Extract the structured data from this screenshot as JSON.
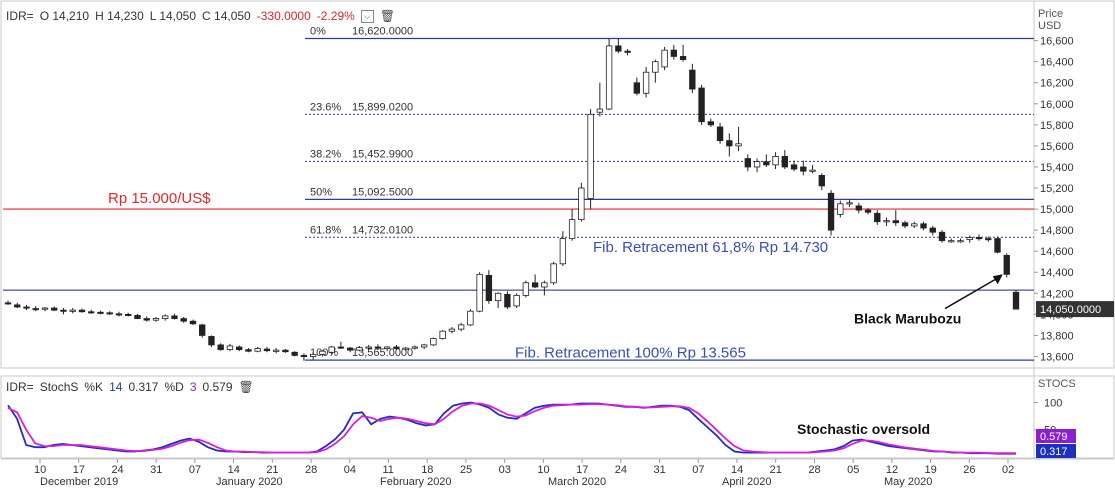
{
  "header": {
    "symbol": "IDR=",
    "open": "O 14,210",
    "high": "H 14,230",
    "low": "L 14,050",
    "close": "C 14,050",
    "change": "-330.0000",
    "change_pct": "-2.29%"
  },
  "stoch_header": {
    "symbol": "IDR=",
    "indicator": "StochS",
    "k_label": "%K",
    "k_period": "14",
    "k_value": "0.317",
    "d_label": "%D",
    "d_period": "3",
    "d_value": "0.579"
  },
  "colors": {
    "fib_line": "#2a3aa0",
    "red_line": "#e8252b",
    "k_line": "#1d2fc0",
    "d_line": "#d91ed9",
    "last_price_bg": "#333333",
    "annotation_blue": "#3a4fb0",
    "annotation_red": "#e8252b"
  },
  "chart_data": [
    {
      "type": "candlestick",
      "y_axis_title": [
        "Price",
        "USD"
      ],
      "ylim": [
        13500,
        16720
      ],
      "y_ticks": [
        "16,600",
        "16,400",
        "16,200",
        "16,000",
        "15,800",
        "15,600",
        "15,400",
        "15,200",
        "15,000",
        "14,800",
        "14,600",
        "14,400",
        "14,200",
        "14,000",
        "13,800",
        "13,600"
      ],
      "last_price": "14,050.0000",
      "x_tick_labels": [
        "10",
        "17",
        "24",
        "31",
        "07",
        "14",
        "21",
        "28",
        "04",
        "11",
        "18",
        "25",
        "03",
        "10",
        "17",
        "24",
        "31",
        "07",
        "14",
        "21",
        "28",
        "05",
        "12",
        "19",
        "26",
        "02"
      ],
      "month_labels": [
        "December 2019",
        "January 2020",
        "February 2020",
        "March 2020",
        "April 2020",
        "May 2020"
      ],
      "fib_levels": [
        {
          "pct": "0%",
          "value": 16620.0,
          "label": "16,620.0000"
        },
        {
          "pct": "23.6%",
          "value": 15899.02,
          "label": "15,899.0200"
        },
        {
          "pct": "38.2%",
          "value": 15452.99,
          "label": "15,452.9900"
        },
        {
          "pct": "50%",
          "value": 15092.5,
          "label": "15,092.5000"
        },
        {
          "pct": "61.8%",
          "value": 14732.01,
          "label": "14,732.0100"
        },
        {
          "pct": "100%",
          "value": 13565.0,
          "label": "13,565.0000"
        }
      ],
      "horizontal_lines": [
        {
          "value": 15000,
          "label": "Rp 15.000/US$"
        },
        {
          "value": 14230
        }
      ],
      "annotations": [
        {
          "text": "Fib. Retracement 61,8% Rp 14.730",
          "value": 14640
        },
        {
          "text": "Fib. Retracement 100% Rp 13.565",
          "value": 13640
        },
        {
          "text": "Black Marubozu",
          "value": 13960
        }
      ],
      "candles": [
        {
          "o": 14110,
          "h": 14130,
          "l": 14090,
          "c": 14100
        },
        {
          "o": 14090,
          "h": 14110,
          "l": 14060,
          "c": 14070
        },
        {
          "o": 14070,
          "h": 14090,
          "l": 14040,
          "c": 14060
        },
        {
          "o": 14055,
          "h": 14080,
          "l": 14030,
          "c": 14050
        },
        {
          "o": 14050,
          "h": 14070,
          "l": 14030,
          "c": 14060
        },
        {
          "o": 14060,
          "h": 14075,
          "l": 14030,
          "c": 14040
        },
        {
          "o": 14040,
          "h": 14060,
          "l": 14000,
          "c": 14030
        },
        {
          "o": 14030,
          "h": 14060,
          "l": 14010,
          "c": 14040
        },
        {
          "o": 14040,
          "h": 14055,
          "l": 14015,
          "c": 14025
        },
        {
          "o": 14025,
          "h": 14045,
          "l": 14005,
          "c": 14020
        },
        {
          "o": 14020,
          "h": 14035,
          "l": 14000,
          "c": 14015
        },
        {
          "o": 14015,
          "h": 14030,
          "l": 13995,
          "c": 14005
        },
        {
          "o": 14005,
          "h": 14025,
          "l": 13980,
          "c": 14000
        },
        {
          "o": 14000,
          "h": 14015,
          "l": 13980,
          "c": 13990
        },
        {
          "o": 13990,
          "h": 14005,
          "l": 13955,
          "c": 13960
        },
        {
          "o": 13960,
          "h": 13980,
          "l": 13930,
          "c": 13945
        },
        {
          "o": 13945,
          "h": 13975,
          "l": 13930,
          "c": 13960
        },
        {
          "o": 13960,
          "h": 14000,
          "l": 13940,
          "c": 13985
        },
        {
          "o": 13985,
          "h": 14005,
          "l": 13950,
          "c": 13960
        },
        {
          "o": 13960,
          "h": 13975,
          "l": 13920,
          "c": 13935
        },
        {
          "o": 13935,
          "h": 13950,
          "l": 13900,
          "c": 13910
        },
        {
          "o": 13900,
          "h": 13910,
          "l": 13780,
          "c": 13800
        },
        {
          "o": 13790,
          "h": 13800,
          "l": 13690,
          "c": 13710
        },
        {
          "o": 13710,
          "h": 13725,
          "l": 13655,
          "c": 13665
        },
        {
          "o": 13665,
          "h": 13720,
          "l": 13650,
          "c": 13700
        },
        {
          "o": 13690,
          "h": 13705,
          "l": 13650,
          "c": 13665
        },
        {
          "o": 13665,
          "h": 13680,
          "l": 13640,
          "c": 13650
        },
        {
          "o": 13650,
          "h": 13690,
          "l": 13640,
          "c": 13675
        },
        {
          "o": 13670,
          "h": 13690,
          "l": 13640,
          "c": 13655
        },
        {
          "o": 13655,
          "h": 13680,
          "l": 13630,
          "c": 13660
        },
        {
          "o": 13660,
          "h": 13670,
          "l": 13635,
          "c": 13645
        },
        {
          "o": 13640,
          "h": 13650,
          "l": 13600,
          "c": 13610
        },
        {
          "o": 13610,
          "h": 13630,
          "l": 13560,
          "c": 13600
        },
        {
          "o": 13600,
          "h": 13640,
          "l": 13570,
          "c": 13620
        },
        {
          "o": 13620,
          "h": 13660,
          "l": 13600,
          "c": 13650
        },
        {
          "o": 13640,
          "h": 13700,
          "l": 13620,
          "c": 13690
        },
        {
          "o": 13690,
          "h": 13740,
          "l": 13670,
          "c": 13680
        },
        {
          "o": 13680,
          "h": 13690,
          "l": 13640,
          "c": 13660
        },
        {
          "o": 13660,
          "h": 13700,
          "l": 13650,
          "c": 13685
        },
        {
          "o": 13685,
          "h": 13710,
          "l": 13660,
          "c": 13690
        },
        {
          "o": 13690,
          "h": 13715,
          "l": 13665,
          "c": 13680
        },
        {
          "o": 13675,
          "h": 13700,
          "l": 13650,
          "c": 13690
        },
        {
          "o": 13690,
          "h": 13710,
          "l": 13660,
          "c": 13675
        },
        {
          "o": 13670,
          "h": 13690,
          "l": 13655,
          "c": 13680
        },
        {
          "o": 13680,
          "h": 13705,
          "l": 13665,
          "c": 13690
        },
        {
          "o": 13690,
          "h": 13720,
          "l": 13670,
          "c": 13710
        },
        {
          "o": 13710,
          "h": 13780,
          "l": 13700,
          "c": 13770
        },
        {
          "o": 13770,
          "h": 13850,
          "l": 13760,
          "c": 13840
        },
        {
          "o": 13840,
          "h": 13880,
          "l": 13820,
          "c": 13860
        },
        {
          "o": 13860,
          "h": 13920,
          "l": 13840,
          "c": 13900
        },
        {
          "o": 13900,
          "h": 14050,
          "l": 13890,
          "c": 14030
        },
        {
          "o": 14030,
          "h": 14400,
          "l": 14020,
          "c": 14380
        },
        {
          "o": 14370,
          "h": 14420,
          "l": 14100,
          "c": 14130
        },
        {
          "o": 14130,
          "h": 14210,
          "l": 14060,
          "c": 14200
        },
        {
          "o": 14190,
          "h": 14220,
          "l": 14050,
          "c": 14070
        },
        {
          "o": 14080,
          "h": 14200,
          "l": 14060,
          "c": 14180
        },
        {
          "o": 14180,
          "h": 14320,
          "l": 14160,
          "c": 14300
        },
        {
          "o": 14300,
          "h": 14380,
          "l": 14250,
          "c": 14260
        },
        {
          "o": 14260,
          "h": 14320,
          "l": 14180,
          "c": 14300
        },
        {
          "o": 14300,
          "h": 14500,
          "l": 14280,
          "c": 14480
        },
        {
          "o": 14480,
          "h": 14790,
          "l": 14460,
          "c": 14720
        },
        {
          "o": 14720,
          "h": 15000,
          "l": 14700,
          "c": 14900
        },
        {
          "o": 14900,
          "h": 15250,
          "l": 14880,
          "c": 15200
        },
        {
          "o": 15100,
          "h": 15950,
          "l": 15000,
          "c": 15900
        },
        {
          "o": 15920,
          "h": 16200,
          "l": 15880,
          "c": 15950
        },
        {
          "o": 15950,
          "h": 16620,
          "l": 15940,
          "c": 16550
        },
        {
          "o": 16550,
          "h": 16620,
          "l": 16480,
          "c": 16500
        },
        {
          "o": 16500,
          "h": 16520,
          "l": 16460,
          "c": 16490
        },
        {
          "o": 16200,
          "h": 16250,
          "l": 16080,
          "c": 16100
        },
        {
          "o": 16100,
          "h": 16350,
          "l": 16060,
          "c": 16300
        },
        {
          "o": 16300,
          "h": 16420,
          "l": 16200,
          "c": 16400
        },
        {
          "o": 16350,
          "h": 16540,
          "l": 16320,
          "c": 16510
        },
        {
          "o": 16510,
          "h": 16560,
          "l": 16420,
          "c": 16450
        },
        {
          "o": 16450,
          "h": 16560,
          "l": 16400,
          "c": 16420
        },
        {
          "o": 16320,
          "h": 16380,
          "l": 16100,
          "c": 16140
        },
        {
          "o": 16150,
          "h": 16180,
          "l": 15800,
          "c": 15830
        },
        {
          "o": 15830,
          "h": 15860,
          "l": 15780,
          "c": 15800
        },
        {
          "o": 15780,
          "h": 15820,
          "l": 15620,
          "c": 15650
        },
        {
          "o": 15650,
          "h": 15720,
          "l": 15500,
          "c": 15600
        },
        {
          "o": 15600,
          "h": 15780,
          "l": 15550,
          "c": 15620
        },
        {
          "o": 15480,
          "h": 15520,
          "l": 15360,
          "c": 15400
        },
        {
          "o": 15400,
          "h": 15480,
          "l": 15350,
          "c": 15450
        },
        {
          "o": 15450,
          "h": 15520,
          "l": 15400,
          "c": 15420
        },
        {
          "o": 15420,
          "h": 15540,
          "l": 15380,
          "c": 15500
        },
        {
          "o": 15500,
          "h": 15560,
          "l": 15380,
          "c": 15400
        },
        {
          "o": 15420,
          "h": 15460,
          "l": 15360,
          "c": 15380
        },
        {
          "o": 15400,
          "h": 15460,
          "l": 15320,
          "c": 15360
        },
        {
          "o": 15360,
          "h": 15420,
          "l": 15340,
          "c": 15370
        },
        {
          "o": 15320,
          "h": 15340,
          "l": 15180,
          "c": 15220
        },
        {
          "o": 15150,
          "h": 15180,
          "l": 14750,
          "c": 14800
        },
        {
          "o": 14950,
          "h": 15080,
          "l": 14920,
          "c": 15050
        },
        {
          "o": 15050,
          "h": 15090,
          "l": 15020,
          "c": 15060
        },
        {
          "o": 15030,
          "h": 15060,
          "l": 14960,
          "c": 14990
        },
        {
          "o": 14990,
          "h": 15010,
          "l": 14950,
          "c": 14970
        },
        {
          "o": 14960,
          "h": 14990,
          "l": 14850,
          "c": 14880
        },
        {
          "o": 14880,
          "h": 14920,
          "l": 14840,
          "c": 14890
        },
        {
          "o": 14890,
          "h": 14990,
          "l": 14840,
          "c": 14870
        },
        {
          "o": 14870,
          "h": 14890,
          "l": 14820,
          "c": 14840
        },
        {
          "o": 14840,
          "h": 14880,
          "l": 14820,
          "c": 14860
        },
        {
          "o": 14860,
          "h": 14880,
          "l": 14800,
          "c": 14820
        },
        {
          "o": 14820,
          "h": 14840,
          "l": 14750,
          "c": 14780
        },
        {
          "o": 14780,
          "h": 14800,
          "l": 14680,
          "c": 14700
        },
        {
          "o": 14700,
          "h": 14720,
          "l": 14680,
          "c": 14700
        },
        {
          "o": 14700,
          "h": 14720,
          "l": 14680,
          "c": 14700
        },
        {
          "o": 14710,
          "h": 14750,
          "l": 14680,
          "c": 14730
        },
        {
          "o": 14730,
          "h": 14760,
          "l": 14700,
          "c": 14720
        },
        {
          "o": 14720,
          "h": 14740,
          "l": 14690,
          "c": 14710
        },
        {
          "o": 14720,
          "h": 14740,
          "l": 14580,
          "c": 14590
        },
        {
          "o": 14560,
          "h": 14580,
          "l": 14350,
          "c": 14380
        },
        {
          "o": 14210,
          "h": 14230,
          "l": 14050,
          "c": 14050
        }
      ]
    },
    {
      "type": "line",
      "y_axis_title": "STOCS",
      "ylim": [
        0,
        110
      ],
      "y_ticks": [
        "100",
        "50"
      ],
      "current_values": [
        "0.579",
        "0.317"
      ],
      "annotation": "Stochastic oversold",
      "series": [
        {
          "name": "%K",
          "values": [
            95,
            70,
            22,
            18,
            18,
            22,
            24,
            22,
            20,
            18,
            16,
            14,
            12,
            10,
            10,
            12,
            14,
            18,
            24,
            30,
            34,
            28,
            18,
            12,
            10,
            10,
            9,
            9,
            8,
            8,
            8,
            8,
            8,
            8,
            10,
            20,
            32,
            50,
            80,
            82,
            60,
            70,
            74,
            72,
            68,
            62,
            58,
            60,
            80,
            94,
            98,
            100,
            96,
            90,
            78,
            72,
            70,
            80,
            90,
            94,
            96,
            96,
            96,
            98,
            98,
            98,
            96,
            94,
            92,
            92,
            90,
            92,
            94,
            94,
            92,
            86,
            70,
            55,
            40,
            22,
            10,
            8,
            8,
            8,
            8,
            8,
            8,
            8,
            8,
            10,
            12,
            14,
            20,
            30,
            32,
            28,
            24,
            20,
            18,
            16,
            14,
            12,
            10,
            10,
            8,
            8,
            7,
            7,
            7,
            6,
            6,
            6
          ]
        },
        {
          "name": "%D",
          "values": [
            90,
            82,
            50,
            25,
            20,
            20,
            22,
            22,
            22,
            20,
            18,
            16,
            14,
            12,
            11,
            11,
            13,
            15,
            20,
            26,
            31,
            32,
            26,
            18,
            12,
            10,
            10,
            9,
            9,
            8,
            8,
            8,
            8,
            8,
            9,
            14,
            24,
            38,
            60,
            75,
            72,
            66,
            70,
            72,
            70,
            66,
            62,
            60,
            70,
            84,
            94,
            98,
            98,
            94,
            86,
            78,
            74,
            76,
            84,
            90,
            94,
            95,
            96,
            96,
            97,
            97,
            96,
            95,
            93,
            92,
            91,
            91,
            92,
            93,
            93,
            90,
            80,
            66,
            50,
            34,
            20,
            12,
            10,
            9,
            8,
            8,
            8,
            8,
            8,
            9,
            10,
            12,
            16,
            24,
            30,
            30,
            27,
            23,
            20,
            17,
            15,
            13,
            11,
            10,
            9,
            8,
            8,
            8,
            7,
            7,
            7,
            7
          ]
        }
      ]
    }
  ]
}
